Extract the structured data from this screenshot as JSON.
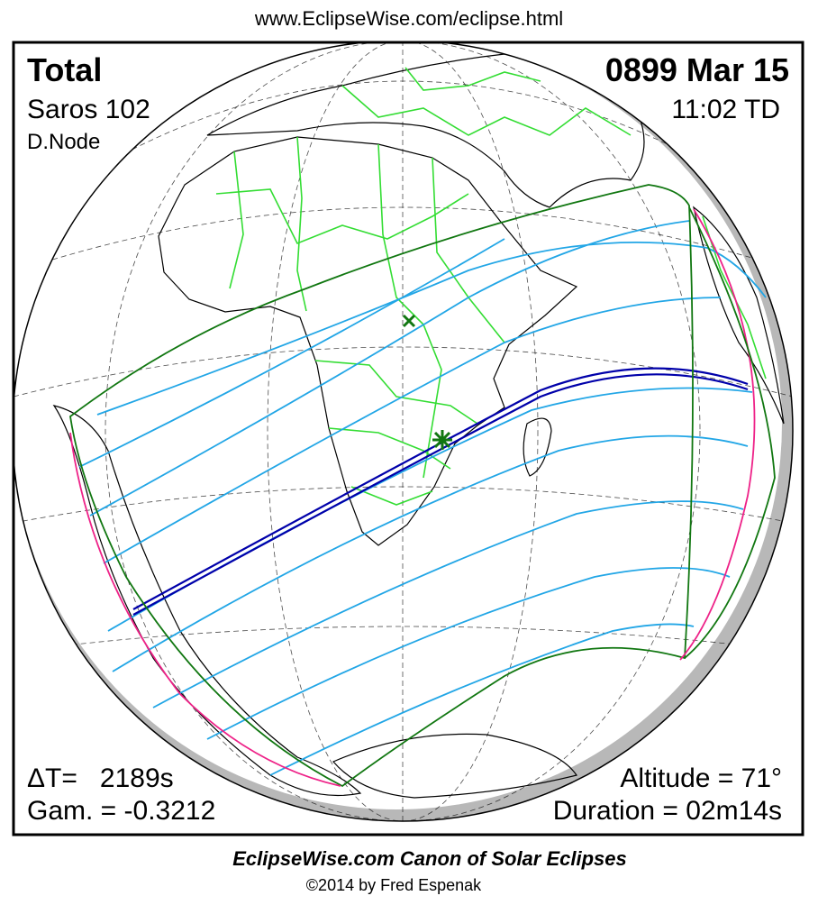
{
  "header": {
    "url": "www.EclipseWise.com/eclipse.html"
  },
  "panel": {
    "top_left": {
      "type": "Total",
      "saros": "Saros 102",
      "node": "D.Node"
    },
    "top_right": {
      "date": "0899 Mar 15",
      "time": "11:02 TD"
    },
    "bottom_left": {
      "delta_t": "ΔT=   2189s",
      "gamma": "Gam. = -0.3212"
    },
    "bottom_right": {
      "altitude": "Altitude = 71°",
      "duration": "Duration = 02m14s"
    }
  },
  "footer": {
    "title": "EclipseWise.com Canon of Solar Eclipses",
    "credit": "©2014 by Fred Espenak"
  }
}
